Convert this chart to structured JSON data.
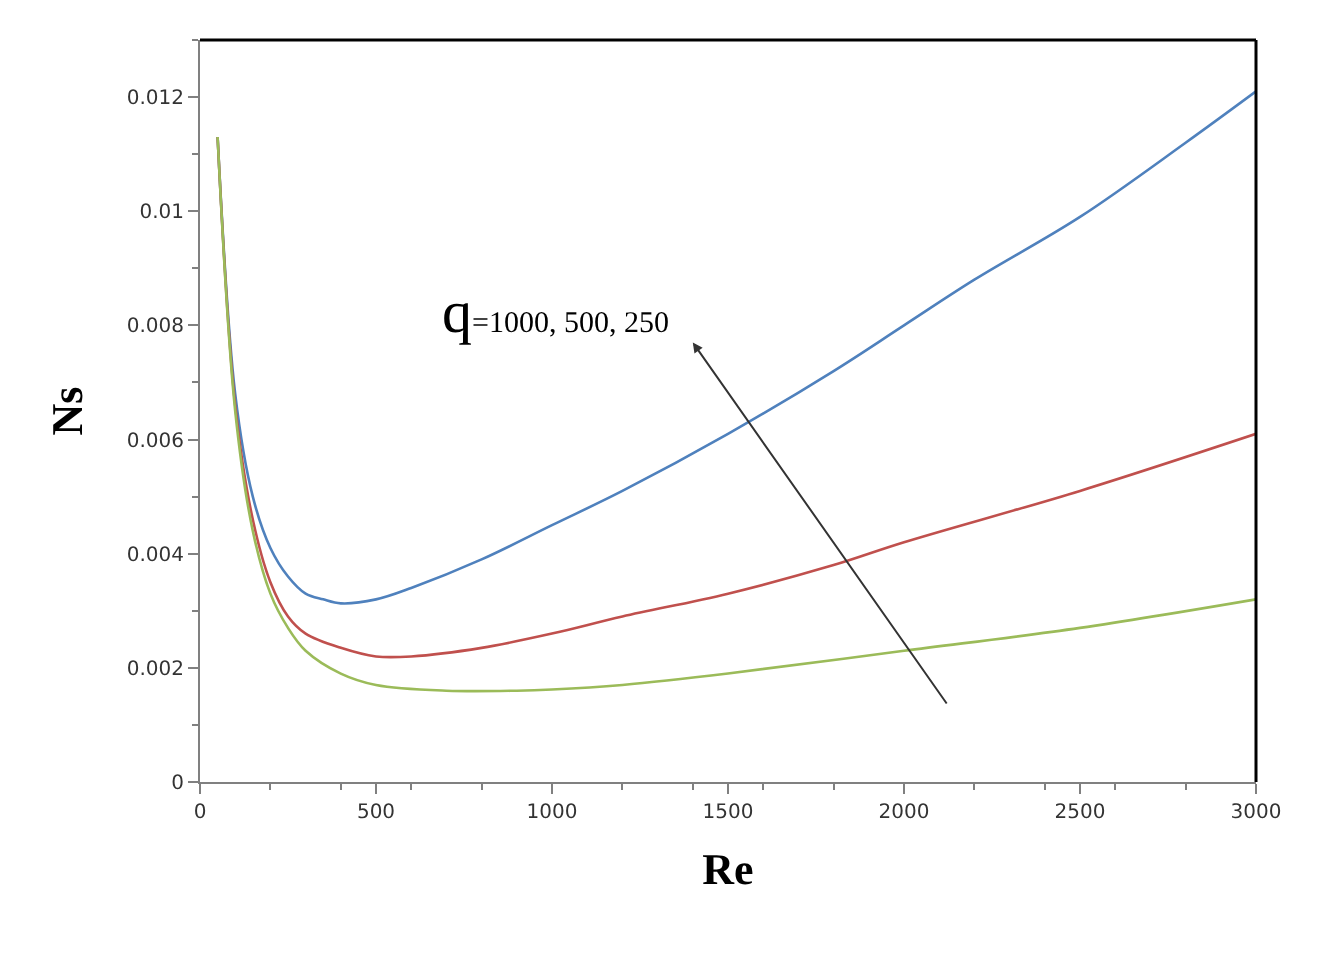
{
  "chart_data": {
    "type": "line",
    "xlabel": "Re",
    "ylabel": "Ns",
    "xlim": [
      0,
      3000
    ],
    "xticks": [
      0,
      500,
      1000,
      1500,
      2000,
      2500,
      3000
    ],
    "ylim": [
      0,
      0.013
    ],
    "yticks": [
      0,
      0.002,
      0.004,
      0.006,
      0.008,
      0.01,
      0.012
    ],
    "marker": "none",
    "line_style": "solid",
    "annotations": [
      "q=1000, 500, 250"
    ],
    "series": [
      {
        "color": "#4f81bd",
        "x": [
          50,
          100,
          150,
          200,
          250,
          300,
          350,
          400,
          500,
          600,
          800,
          1000,
          1200,
          1500,
          1800,
          2000,
          2200,
          2500,
          2800,
          3000
        ],
        "values": [
          0.0113,
          0.0068,
          0.005,
          0.0041,
          0.0036,
          0.0033,
          0.0032,
          0.00313,
          0.0032,
          0.0034,
          0.0039,
          0.0045,
          0.0051,
          0.0061,
          0.0072,
          0.008,
          0.0088,
          0.0099,
          0.0112,
          0.0121
        ]
      },
      {
        "color": "#c0504d",
        "x": [
          50,
          100,
          150,
          200,
          250,
          300,
          400,
          500,
          600,
          800,
          1000,
          1200,
          1500,
          1800,
          2000,
          2500,
          3000
        ],
        "values": [
          0.0113,
          0.0066,
          0.0046,
          0.0035,
          0.0029,
          0.0026,
          0.00235,
          0.0022,
          0.0022,
          0.00235,
          0.0026,
          0.0029,
          0.0033,
          0.0038,
          0.0042,
          0.0051,
          0.0061
        ]
      },
      {
        "color": "#9bbb59",
        "x": [
          50,
          100,
          150,
          200,
          250,
          300,
          400,
          500,
          700,
          900,
          1000,
          1200,
          1500,
          2000,
          2500,
          3000
        ],
        "values": [
          0.0113,
          0.0065,
          0.0044,
          0.0033,
          0.0027,
          0.0023,
          0.0019,
          0.0017,
          0.0016,
          0.0016,
          0.00162,
          0.0017,
          0.0019,
          0.0023,
          0.0027,
          0.0032
        ]
      }
    ]
  }
}
